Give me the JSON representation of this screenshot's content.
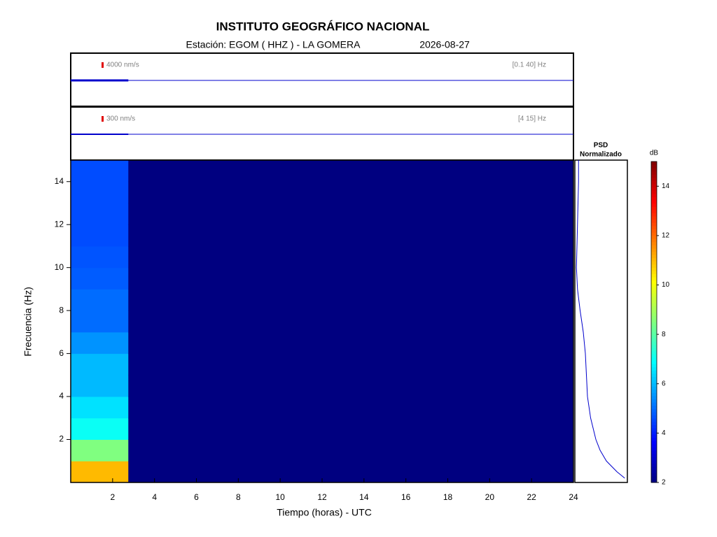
{
  "chart_data": {
    "type": "spectrogram",
    "title": "INSTITUTO GEOGRÁFICO NACIONAL",
    "subtitle": "Estación:  EGOM ( HHZ ) - LA GOMERA",
    "date": "2026-08-27",
    "xlabel": "Tiempo (horas) - UTC",
    "ylabel": "Frecuencia  (Hz)",
    "xlim": [
      0,
      24
    ],
    "xticks": [
      2,
      4,
      6,
      8,
      10,
      12,
      14,
      16,
      18,
      20,
      22,
      24
    ],
    "ylim": [
      0,
      15
    ],
    "yticks": [
      2,
      4,
      6,
      8,
      10,
      12,
      14
    ],
    "traces": [
      {
        "scale_label": "4000 nm/s",
        "band": "[0.1 40] Hz",
        "x": [
          0,
          2.75
        ],
        "color": "#0000cc"
      },
      {
        "scale_label": "300 nm/s",
        "band": "[4 15] Hz",
        "x": [
          0,
          2.75
        ],
        "color": "#0000cc"
      }
    ],
    "heatmap": {
      "time_bins": [
        0,
        2.75,
        24
      ],
      "freq_bins": [
        0,
        1,
        2,
        3,
        4,
        5,
        6,
        7,
        8,
        9,
        10,
        11,
        12,
        13,
        14,
        15
      ],
      "values": [
        [
          11,
          8.5,
          7,
          6.5,
          6,
          6,
          5.5,
          5,
          5,
          4.8,
          4.7,
          4.6,
          4.6,
          4.6,
          4.6
        ],
        [
          2,
          2,
          2,
          2,
          2,
          2,
          2,
          2,
          2,
          2,
          2,
          2,
          2,
          2,
          2
        ]
      ]
    },
    "psd": {
      "title": [
        "PSD",
        "Normalizado"
      ],
      "xlim": [
        0,
        1
      ],
      "freq": [
        0.2,
        0.5,
        1,
        1.5,
        2,
        3,
        4,
        5,
        6,
        7,
        8,
        9,
        10,
        11,
        12,
        13,
        14,
        15
      ],
      "values": [
        0.95,
        0.8,
        0.6,
        0.48,
        0.4,
        0.3,
        0.24,
        0.22,
        0.2,
        0.16,
        0.1,
        0.05,
        0.03,
        0.04,
        0.05,
        0.06,
        0.07,
        0.07
      ],
      "color": "#0000cc"
    },
    "colorbar": {
      "label": "dB",
      "clim": [
        2,
        15
      ],
      "ticks": [
        2,
        4,
        6,
        8,
        10,
        12,
        14
      ]
    }
  }
}
